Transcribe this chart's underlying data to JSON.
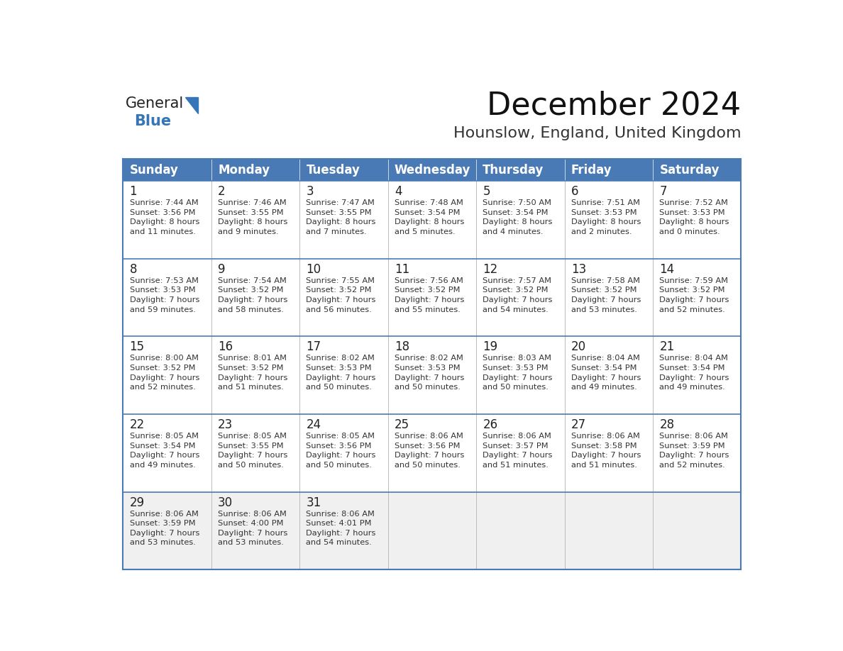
{
  "title": "December 2024",
  "subtitle": "Hounslow, England, United Kingdom",
  "days_of_week": [
    "Sunday",
    "Monday",
    "Tuesday",
    "Wednesday",
    "Thursday",
    "Friday",
    "Saturday"
  ],
  "header_bg": "#4a7ab5",
  "header_text": "#FFFFFF",
  "cell_bg_white": "#FFFFFF",
  "cell_bg_gray": "#F0F0F0",
  "day_number_color": "#222222",
  "info_text_color": "#333333",
  "row_border_color": "#4a7ab5",
  "col_border_color": "#bbbbbb",
  "title_color": "#111111",
  "subtitle_color": "#333333",
  "logo_general_color": "#222222",
  "logo_blue_color": "#3575B8",
  "calendar_data": [
    [
      {
        "day": 1,
        "sunrise": "7:44 AM",
        "sunset": "3:56 PM",
        "daylight_h": "8 hours",
        "daylight_m": "and 11 minutes."
      },
      {
        "day": 2,
        "sunrise": "7:46 AM",
        "sunset": "3:55 PM",
        "daylight_h": "8 hours",
        "daylight_m": "and 9 minutes."
      },
      {
        "day": 3,
        "sunrise": "7:47 AM",
        "sunset": "3:55 PM",
        "daylight_h": "8 hours",
        "daylight_m": "and 7 minutes."
      },
      {
        "day": 4,
        "sunrise": "7:48 AM",
        "sunset": "3:54 PM",
        "daylight_h": "8 hours",
        "daylight_m": "and 5 minutes."
      },
      {
        "day": 5,
        "sunrise": "7:50 AM",
        "sunset": "3:54 PM",
        "daylight_h": "8 hours",
        "daylight_m": "and 4 minutes."
      },
      {
        "day": 6,
        "sunrise": "7:51 AM",
        "sunset": "3:53 PM",
        "daylight_h": "8 hours",
        "daylight_m": "and 2 minutes."
      },
      {
        "day": 7,
        "sunrise": "7:52 AM",
        "sunset": "3:53 PM",
        "daylight_h": "8 hours",
        "daylight_m": "and 0 minutes."
      }
    ],
    [
      {
        "day": 8,
        "sunrise": "7:53 AM",
        "sunset": "3:53 PM",
        "daylight_h": "7 hours",
        "daylight_m": "and 59 minutes."
      },
      {
        "day": 9,
        "sunrise": "7:54 AM",
        "sunset": "3:52 PM",
        "daylight_h": "7 hours",
        "daylight_m": "and 58 minutes."
      },
      {
        "day": 10,
        "sunrise": "7:55 AM",
        "sunset": "3:52 PM",
        "daylight_h": "7 hours",
        "daylight_m": "and 56 minutes."
      },
      {
        "day": 11,
        "sunrise": "7:56 AM",
        "sunset": "3:52 PM",
        "daylight_h": "7 hours",
        "daylight_m": "and 55 minutes."
      },
      {
        "day": 12,
        "sunrise": "7:57 AM",
        "sunset": "3:52 PM",
        "daylight_h": "7 hours",
        "daylight_m": "and 54 minutes."
      },
      {
        "day": 13,
        "sunrise": "7:58 AM",
        "sunset": "3:52 PM",
        "daylight_h": "7 hours",
        "daylight_m": "and 53 minutes."
      },
      {
        "day": 14,
        "sunrise": "7:59 AM",
        "sunset": "3:52 PM",
        "daylight_h": "7 hours",
        "daylight_m": "and 52 minutes."
      }
    ],
    [
      {
        "day": 15,
        "sunrise": "8:00 AM",
        "sunset": "3:52 PM",
        "daylight_h": "7 hours",
        "daylight_m": "and 52 minutes."
      },
      {
        "day": 16,
        "sunrise": "8:01 AM",
        "sunset": "3:52 PM",
        "daylight_h": "7 hours",
        "daylight_m": "and 51 minutes."
      },
      {
        "day": 17,
        "sunrise": "8:02 AM",
        "sunset": "3:53 PM",
        "daylight_h": "7 hours",
        "daylight_m": "and 50 minutes."
      },
      {
        "day": 18,
        "sunrise": "8:02 AM",
        "sunset": "3:53 PM",
        "daylight_h": "7 hours",
        "daylight_m": "and 50 minutes."
      },
      {
        "day": 19,
        "sunrise": "8:03 AM",
        "sunset": "3:53 PM",
        "daylight_h": "7 hours",
        "daylight_m": "and 50 minutes."
      },
      {
        "day": 20,
        "sunrise": "8:04 AM",
        "sunset": "3:54 PM",
        "daylight_h": "7 hours",
        "daylight_m": "and 49 minutes."
      },
      {
        "day": 21,
        "sunrise": "8:04 AM",
        "sunset": "3:54 PM",
        "daylight_h": "7 hours",
        "daylight_m": "and 49 minutes."
      }
    ],
    [
      {
        "day": 22,
        "sunrise": "8:05 AM",
        "sunset": "3:54 PM",
        "daylight_h": "7 hours",
        "daylight_m": "and 49 minutes."
      },
      {
        "day": 23,
        "sunrise": "8:05 AM",
        "sunset": "3:55 PM",
        "daylight_h": "7 hours",
        "daylight_m": "and 50 minutes."
      },
      {
        "day": 24,
        "sunrise": "8:05 AM",
        "sunset": "3:56 PM",
        "daylight_h": "7 hours",
        "daylight_m": "and 50 minutes."
      },
      {
        "day": 25,
        "sunrise": "8:06 AM",
        "sunset": "3:56 PM",
        "daylight_h": "7 hours",
        "daylight_m": "and 50 minutes."
      },
      {
        "day": 26,
        "sunrise": "8:06 AM",
        "sunset": "3:57 PM",
        "daylight_h": "7 hours",
        "daylight_m": "and 51 minutes."
      },
      {
        "day": 27,
        "sunrise": "8:06 AM",
        "sunset": "3:58 PM",
        "daylight_h": "7 hours",
        "daylight_m": "and 51 minutes."
      },
      {
        "day": 28,
        "sunrise": "8:06 AM",
        "sunset": "3:59 PM",
        "daylight_h": "7 hours",
        "daylight_m": "and 52 minutes."
      }
    ],
    [
      {
        "day": 29,
        "sunrise": "8:06 AM",
        "sunset": "3:59 PM",
        "daylight_h": "7 hours",
        "daylight_m": "and 53 minutes."
      },
      {
        "day": 30,
        "sunrise": "8:06 AM",
        "sunset": "4:00 PM",
        "daylight_h": "7 hours",
        "daylight_m": "and 53 minutes."
      },
      {
        "day": 31,
        "sunrise": "8:06 AM",
        "sunset": "4:01 PM",
        "daylight_h": "7 hours",
        "daylight_m": "and 54 minutes."
      },
      null,
      null,
      null,
      null
    ]
  ]
}
